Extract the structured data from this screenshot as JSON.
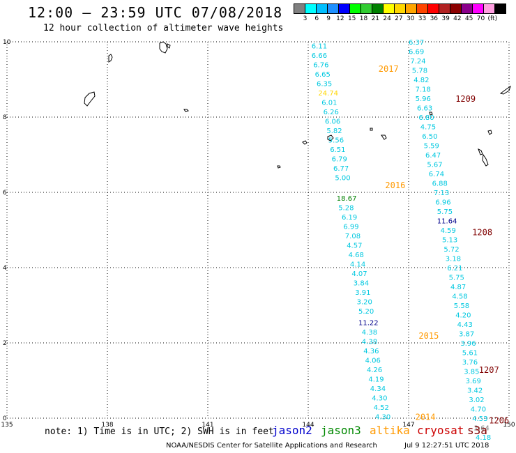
{
  "title": "12:00 – 23:59 UTC 07/08/2018",
  "subtitle": "12 hour collection of altimeter wave heights",
  "color_scale": {
    "colors": [
      "#808080",
      "#00ffff",
      "#00bfff",
      "#1e90ff",
      "#0000ff",
      "#00ff00",
      "#32cd32",
      "#008000",
      "#ffff00",
      "#ffd700",
      "#ffa500",
      "#ff4500",
      "#ff0000",
      "#b22222",
      "#8b0000",
      "#8b008b",
      "#ff00ff",
      "#ff9ee0",
      "#000000"
    ],
    "labels": [
      "3",
      "6",
      "9",
      "12",
      "15",
      "18",
      "21",
      "24",
      "27",
      "30",
      "33",
      "36",
      "39",
      "42",
      "45",
      "70",
      "(ft)"
    ]
  },
  "axes": {
    "x_ticks": [
      "135",
      "138",
      "141",
      "144",
      "147",
      "150"
    ],
    "y_ticks": [
      "0",
      "2",
      "4",
      "6",
      "8",
      "10"
    ]
  },
  "chart_data": {
    "type": "scatter",
    "x_range": [
      135,
      150
    ],
    "y_range": [
      0,
      10
    ],
    "passes": [
      {
        "name": "2017",
        "x": 146.1,
        "y": 9.3,
        "color": "#ff9900"
      },
      {
        "name": "2016",
        "x": 146.3,
        "y": 6.2,
        "color": "#ff9900"
      },
      {
        "name": "2015",
        "x": 147.3,
        "y": 2.2,
        "color": "#ff9900"
      },
      {
        "name": "2014",
        "x": 147.2,
        "y": 0.05,
        "color": "#ff9900"
      },
      {
        "name": "1209",
        "x": 148.4,
        "y": 8.5,
        "color": "#800000"
      },
      {
        "name": "1208",
        "x": 148.9,
        "y": 4.95,
        "color": "#800000"
      },
      {
        "name": "1207",
        "x": 149.1,
        "y": 1.3,
        "color": "#800000"
      },
      {
        "name": "1206",
        "x": 149.4,
        "y": -0.05,
        "color": "#800000"
      }
    ],
    "tracks": [
      {
        "name": "altika",
        "points": [
          {
            "x": 144.1,
            "y": 9.9,
            "v": "6.11"
          },
          {
            "x": 144.1,
            "y": 9.65,
            "v": "6.66"
          },
          {
            "x": 144.15,
            "y": 9.4,
            "v": "6.76"
          },
          {
            "x": 144.2,
            "y": 9.15,
            "v": "6.65"
          },
          {
            "x": 144.25,
            "y": 8.9,
            "v": "6.35"
          },
          {
            "x": 144.3,
            "y": 8.65,
            "v": "24.74",
            "c": "#ffd700"
          },
          {
            "x": 144.4,
            "y": 8.4,
            "v": "6.01"
          },
          {
            "x": 144.45,
            "y": 8.15,
            "v": "6.26"
          },
          {
            "x": 144.5,
            "y": 7.9,
            "v": "6.06"
          },
          {
            "x": 144.55,
            "y": 7.65,
            "v": "5.82"
          },
          {
            "x": 144.6,
            "y": 7.4,
            "v": "5.56"
          },
          {
            "x": 144.65,
            "y": 7.15,
            "v": "6.51"
          },
          {
            "x": 144.7,
            "y": 6.9,
            "v": "6.79"
          },
          {
            "x": 144.75,
            "y": 6.65,
            "v": "6.77"
          },
          {
            "x": 144.8,
            "y": 6.4,
            "v": "5.00"
          },
          {
            "x": 144.85,
            "y": 5.85,
            "v": "18.67",
            "c": "#008000"
          },
          {
            "x": 144.9,
            "y": 5.6,
            "v": "5.28"
          },
          {
            "x": 145.0,
            "y": 5.35,
            "v": "6.19"
          },
          {
            "x": 145.05,
            "y": 5.1,
            "v": "6.99"
          },
          {
            "x": 145.1,
            "y": 4.85,
            "v": "7.08"
          },
          {
            "x": 145.15,
            "y": 4.6,
            "v": "4.57"
          },
          {
            "x": 145.2,
            "y": 4.35,
            "v": "4.68"
          },
          {
            "x": 145.25,
            "y": 4.1,
            "v": "4.14"
          },
          {
            "x": 145.3,
            "y": 3.85,
            "v": "4.07"
          },
          {
            "x": 145.35,
            "y": 3.6,
            "v": "3.84"
          },
          {
            "x": 145.4,
            "y": 3.35,
            "v": "3.91"
          },
          {
            "x": 145.45,
            "y": 3.1,
            "v": "3.20"
          },
          {
            "x": 145.5,
            "y": 2.85,
            "v": "5.20"
          },
          {
            "x": 145.5,
            "y": 2.55,
            "v": "11.22",
            "c": "#00008b"
          },
          {
            "x": 145.6,
            "y": 2.3,
            "v": "4.38"
          },
          {
            "x": 145.6,
            "y": 2.05,
            "v": "4.38"
          },
          {
            "x": 145.65,
            "y": 1.8,
            "v": "4.36"
          },
          {
            "x": 145.7,
            "y": 1.55,
            "v": "4.06"
          },
          {
            "x": 145.75,
            "y": 1.3,
            "v": "4.26"
          },
          {
            "x": 145.8,
            "y": 1.05,
            "v": "4.19"
          },
          {
            "x": 145.85,
            "y": 0.8,
            "v": "4.34"
          },
          {
            "x": 145.9,
            "y": 0.55,
            "v": "4.30"
          },
          {
            "x": 145.95,
            "y": 0.3,
            "v": "4.52"
          },
          {
            "x": 146.0,
            "y": 0.05,
            "v": "4.30"
          }
        ]
      },
      {
        "name": "cryosat",
        "points": [
          {
            "x": 147.0,
            "y": 10.0,
            "v": "6.37"
          },
          {
            "x": 147.0,
            "y": 9.75,
            "v": "6.69"
          },
          {
            "x": 147.05,
            "y": 9.5,
            "v": "7.24"
          },
          {
            "x": 147.1,
            "y": 9.25,
            "v": "5.78"
          },
          {
            "x": 147.15,
            "y": 9.0,
            "v": "4.82"
          },
          {
            "x": 147.2,
            "y": 8.75,
            "v": "7.18"
          },
          {
            "x": 147.2,
            "y": 8.5,
            "v": "5.96"
          },
          {
            "x": 147.25,
            "y": 8.25,
            "v": "6.63"
          },
          {
            "x": 147.3,
            "y": 8.0,
            "v": "6.80"
          },
          {
            "x": 147.35,
            "y": 7.75,
            "v": "4.75"
          },
          {
            "x": 147.4,
            "y": 7.5,
            "v": "6.50"
          },
          {
            "x": 147.45,
            "y": 7.25,
            "v": "5.59"
          },
          {
            "x": 147.5,
            "y": 7.0,
            "v": "6.47"
          },
          {
            "x": 147.55,
            "y": 6.75,
            "v": "5.67"
          },
          {
            "x": 147.6,
            "y": 6.5,
            "v": "6.74"
          },
          {
            "x": 147.7,
            "y": 6.25,
            "v": "6.88"
          },
          {
            "x": 147.75,
            "y": 6.0,
            "v": "7.13"
          },
          {
            "x": 147.8,
            "y": 5.75,
            "v": "6.96"
          },
          {
            "x": 147.85,
            "y": 5.5,
            "v": "5.75"
          },
          {
            "x": 147.85,
            "y": 5.25,
            "v": "11.64",
            "c": "#00008b"
          },
          {
            "x": 147.95,
            "y": 5.0,
            "v": "4.59"
          },
          {
            "x": 148.0,
            "y": 4.75,
            "v": "5.13"
          },
          {
            "x": 148.05,
            "y": 4.5,
            "v": "5.72"
          },
          {
            "x": 148.1,
            "y": 4.25,
            "v": "3.18"
          },
          {
            "x": 148.15,
            "y": 4.0,
            "v": "6.21"
          },
          {
            "x": 148.2,
            "y": 3.75,
            "v": "5.75"
          },
          {
            "x": 148.25,
            "y": 3.5,
            "v": "4.87"
          },
          {
            "x": 148.3,
            "y": 3.25,
            "v": "4.58"
          },
          {
            "x": 148.35,
            "y": 3.0,
            "v": "5.58"
          },
          {
            "x": 148.4,
            "y": 2.75,
            "v": "4.20"
          },
          {
            "x": 148.45,
            "y": 2.5,
            "v": "4.43"
          },
          {
            "x": 148.5,
            "y": 2.25,
            "v": "3.87"
          },
          {
            "x": 148.55,
            "y": 2.0,
            "v": "3.96"
          },
          {
            "x": 148.6,
            "y": 1.75,
            "v": "5.61"
          },
          {
            "x": 148.6,
            "y": 1.5,
            "v": "3.76"
          },
          {
            "x": 148.65,
            "y": 1.25,
            "v": "3.85"
          },
          {
            "x": 148.7,
            "y": 1.0,
            "v": "3.69"
          },
          {
            "x": 148.75,
            "y": 0.75,
            "v": "3.42"
          },
          {
            "x": 148.8,
            "y": 0.5,
            "v": "3.02"
          },
          {
            "x": 148.85,
            "y": 0.25,
            "v": "4.70"
          },
          {
            "x": 148.9,
            "y": 0.0,
            "v": "4.53"
          },
          {
            "x": 148.95,
            "y": -0.25,
            "v": "2.64",
            "c": "#808080"
          },
          {
            "x": 149.0,
            "y": -0.5,
            "v": "4.18"
          }
        ]
      }
    ]
  },
  "footer": {
    "note": "note: 1) Time is in UTC; 2) SWH is in feet",
    "legend": [
      {
        "label": "jason2",
        "color": "#0000cc"
      },
      {
        "label": "jason3",
        "color": "#008800"
      },
      {
        "label": "altika",
        "color": "#ff9900"
      },
      {
        "label": "cryosat",
        "color": "#cc0000"
      },
      {
        "label": "s3a",
        "color": "#800000"
      }
    ],
    "credit": "NOAA/NESDIS Center for Satellite Applications and Research",
    "timestamp": "Jul  9 12:27:51 UTC 2018"
  }
}
